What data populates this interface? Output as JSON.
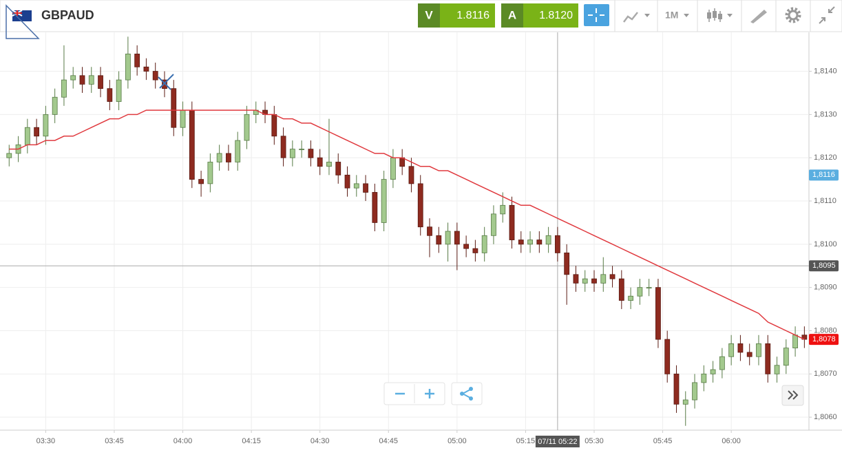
{
  "header": {
    "symbol": "GBPAUD",
    "bid_label": "V",
    "bid": "1.8116",
    "ask_label": "A",
    "ask": "1.8120",
    "timeframe": "1M"
  },
  "chart_data": {
    "type": "candlestick",
    "categories": [
      "03:22",
      "03:24",
      "03:26",
      "03:28",
      "03:30",
      "03:32",
      "03:34",
      "03:36",
      "03:38",
      "03:40",
      "03:42",
      "03:44",
      "03:46",
      "03:48",
      "03:50",
      "03:52",
      "03:54",
      "03:56",
      "03:58",
      "04:00",
      "04:02",
      "04:04",
      "04:06",
      "04:08",
      "04:10",
      "04:12",
      "04:14",
      "04:16",
      "04:18",
      "04:20",
      "04:22",
      "04:24",
      "04:26",
      "04:28",
      "04:30",
      "04:32",
      "04:34",
      "04:36",
      "04:38",
      "04:40",
      "04:42",
      "04:44",
      "04:46",
      "04:48",
      "04:50",
      "04:52",
      "04:54",
      "04:56",
      "04:58",
      "05:00",
      "05:02",
      "05:04",
      "05:06",
      "05:08",
      "05:10",
      "05:12",
      "05:14",
      "05:16",
      "05:18",
      "05:20",
      "05:22",
      "05:24",
      "05:26",
      "05:28",
      "05:30",
      "05:32",
      "05:34",
      "05:36",
      "05:38",
      "05:40",
      "05:42",
      "05:44",
      "05:46",
      "05:48",
      "05:50",
      "05:52",
      "05:54",
      "05:56",
      "05:58",
      "06:00",
      "06:02",
      "06:04",
      "06:06",
      "06:08",
      "06:10",
      "06:12",
      "06:14",
      "06:16"
    ],
    "open": [
      1.812,
      1.8121,
      1.8123,
      1.8127,
      1.8125,
      1.813,
      1.8134,
      1.8138,
      1.8139,
      1.8137,
      1.8139,
      1.8136,
      1.8133,
      1.8138,
      1.8144,
      1.8141,
      1.814,
      1.8138,
      1.8136,
      1.8127,
      1.8131,
      1.8115,
      1.8114,
      1.8119,
      1.8121,
      1.8119,
      1.8124,
      1.813,
      1.8131,
      1.813,
      1.8125,
      1.812,
      1.8122,
      1.8122,
      1.812,
      1.8118,
      1.8119,
      1.8116,
      1.8113,
      1.8114,
      1.8112,
      1.8105,
      1.8115,
      1.812,
      1.8118,
      1.8114,
      1.8104,
      1.8102,
      1.81,
      1.8103,
      1.81,
      1.8099,
      1.8098,
      1.8102,
      1.8107,
      1.8109,
      1.8101,
      1.81,
      1.8101,
      1.81,
      1.8102,
      1.8098,
      1.8093,
      1.8091,
      1.8092,
      1.8091,
      1.8093,
      1.8092,
      1.8087,
      1.8088,
      1.809,
      1.809,
      1.8078,
      1.807,
      1.8063,
      1.8064,
      1.8068,
      1.807,
      1.8071,
      1.8074,
      1.8077,
      1.8075,
      1.8074,
      1.8077,
      1.807,
      1.8072,
      1.8076,
      1.8079
    ],
    "high": [
      1.8123,
      1.8125,
      1.8129,
      1.8129,
      1.8132,
      1.8136,
      1.8146,
      1.8141,
      1.8141,
      1.8141,
      1.8141,
      1.8138,
      1.814,
      1.8148,
      1.8146,
      1.8143,
      1.8142,
      1.814,
      1.8138,
      1.8133,
      1.8133,
      1.8117,
      1.8121,
      1.8123,
      1.8123,
      1.8126,
      1.8132,
      1.8133,
      1.8133,
      1.8132,
      1.8127,
      1.8124,
      1.8124,
      1.8124,
      1.8122,
      1.8129,
      1.8121,
      1.8118,
      1.8116,
      1.8116,
      1.8114,
      1.8117,
      1.8122,
      1.8122,
      1.812,
      1.8116,
      1.8106,
      1.8104,
      1.8105,
      1.8105,
      1.8102,
      1.8101,
      1.8104,
      1.8109,
      1.8112,
      1.8111,
      1.8103,
      1.8103,
      1.8103,
      1.8104,
      1.8104,
      1.81,
      1.8095,
      1.8094,
      1.8094,
      1.8097,
      1.8095,
      1.8094,
      1.809,
      1.8092,
      1.8092,
      1.8092,
      1.808,
      1.8072,
      1.8066,
      1.807,
      1.8072,
      1.8073,
      1.8076,
      1.8079,
      1.8079,
      1.8077,
      1.8079,
      1.8079,
      1.8074,
      1.8078,
      1.8081,
      1.8081
    ],
    "low": [
      1.8118,
      1.8119,
      1.8121,
      1.8123,
      1.8123,
      1.8128,
      1.8132,
      1.8136,
      1.8135,
      1.8135,
      1.8134,
      1.8131,
      1.8131,
      1.8136,
      1.8139,
      1.8138,
      1.8136,
      1.8134,
      1.8125,
      1.8125,
      1.8113,
      1.8111,
      1.8112,
      1.8117,
      1.8117,
      1.8117,
      1.8122,
      1.8128,
      1.8128,
      1.8123,
      1.8118,
      1.8118,
      1.812,
      1.8118,
      1.8116,
      1.8116,
      1.8114,
      1.8111,
      1.8111,
      1.811,
      1.8103,
      1.8103,
      1.8113,
      1.8116,
      1.8112,
      1.8102,
      1.8097,
      1.8098,
      1.8096,
      1.8094,
      1.8097,
      1.8096,
      1.8096,
      1.81,
      1.8105,
      1.8099,
      1.8098,
      1.8098,
      1.8098,
      1.8098,
      1.8096,
      1.8086,
      1.8089,
      1.8089,
      1.8089,
      1.8089,
      1.809,
      1.8085,
      1.8085,
      1.8086,
      1.8088,
      1.8076,
      1.8068,
      1.8061,
      1.8058,
      1.8062,
      1.8066,
      1.8068,
      1.8069,
      1.8072,
      1.8073,
      1.8072,
      1.8072,
      1.8068,
      1.8068,
      1.807,
      1.8074,
      1.8076
    ],
    "close": [
      1.8121,
      1.8123,
      1.8127,
      1.8125,
      1.813,
      1.8134,
      1.8138,
      1.8139,
      1.8137,
      1.8139,
      1.8136,
      1.8133,
      1.8138,
      1.8144,
      1.8141,
      1.814,
      1.8138,
      1.8136,
      1.8127,
      1.8131,
      1.8115,
      1.8114,
      1.8119,
      1.8121,
      1.8119,
      1.8124,
      1.813,
      1.8131,
      1.813,
      1.8125,
      1.812,
      1.8122,
      1.8122,
      1.812,
      1.8118,
      1.8119,
      1.8116,
      1.8113,
      1.8114,
      1.8112,
      1.8105,
      1.8115,
      1.812,
      1.8118,
      1.8114,
      1.8104,
      1.8102,
      1.81,
      1.8103,
      1.81,
      1.8099,
      1.8098,
      1.8102,
      1.8107,
      1.8109,
      1.8101,
      1.81,
      1.8101,
      1.81,
      1.8102,
      1.8098,
      1.8093,
      1.8091,
      1.8092,
      1.8091,
      1.8093,
      1.8092,
      1.8087,
      1.8088,
      1.809,
      1.809,
      1.8078,
      1.807,
      1.8063,
      1.8064,
      1.8068,
      1.807,
      1.8071,
      1.8074,
      1.8077,
      1.8075,
      1.8074,
      1.8077,
      1.807,
      1.8072,
      1.8076,
      1.8079,
      1.8078
    ],
    "up_color": "#a3c98e",
    "down_color": "#8e2b20",
    "moving_average": {
      "color": "#e0393e",
      "values": [
        1.8122,
        1.8122,
        1.8123,
        1.8123,
        1.8124,
        1.8124,
        1.8125,
        1.8125,
        1.8126,
        1.8127,
        1.8128,
        1.8129,
        1.8129,
        1.813,
        1.813,
        1.8131,
        1.8131,
        1.8131,
        1.8131,
        1.8131,
        1.8131,
        1.8131,
        1.8131,
        1.8131,
        1.8131,
        1.8131,
        1.8131,
        1.8131,
        1.813,
        1.813,
        1.8129,
        1.8129,
        1.8128,
        1.8128,
        1.8127,
        1.8126,
        1.8125,
        1.8124,
        1.8123,
        1.8122,
        1.8121,
        1.8121,
        1.812,
        1.812,
        1.8119,
        1.8118,
        1.8118,
        1.8117,
        1.8117,
        1.8116,
        1.8115,
        1.8114,
        1.8113,
        1.8112,
        1.8111,
        1.811,
        1.8109,
        1.8109,
        1.8108,
        1.8107,
        1.8106,
        1.8105,
        1.8104,
        1.8103,
        1.8102,
        1.8101,
        1.81,
        1.8099,
        1.8098,
        1.8097,
        1.8096,
        1.8095,
        1.8094,
        1.8093,
        1.8092,
        1.8091,
        1.809,
        1.8089,
        1.8088,
        1.8087,
        1.8086,
        1.8085,
        1.8084,
        1.8082,
        1.8081,
        1.808,
        1.8079,
        1.8078
      ]
    },
    "xlim": [
      "03:20",
      "06:17"
    ],
    "xticks": [
      "03:30",
      "03:45",
      "04:00",
      "04:15",
      "04:30",
      "04:45",
      "05:00",
      "05:15",
      "05:30",
      "05:45",
      "06:00"
    ],
    "ylim": [
      1.8057,
      1.8149
    ],
    "yticks": [
      {
        "value": 1.806,
        "label": "1,8060"
      },
      {
        "value": 1.807,
        "label": "1,8070"
      },
      {
        "value": 1.808,
        "label": "1,8080"
      },
      {
        "value": 1.809,
        "label": "1,8090"
      },
      {
        "value": 1.81,
        "label": "1,8100"
      },
      {
        "value": 1.811,
        "label": "1,8110"
      },
      {
        "value": 1.812,
        "label": "1,8120"
      },
      {
        "value": 1.813,
        "label": "1,8130"
      },
      {
        "value": 1.814,
        "label": "1,8140"
      }
    ],
    "grid": true,
    "price_labels": [
      {
        "value": 1.8116,
        "label": "1,8116",
        "color": "#5aaee0"
      },
      {
        "value": 1.8095,
        "label": "1,8095",
        "color": "#555555"
      },
      {
        "value": 1.8078,
        "label": "1,8078",
        "color": "#ee1111"
      }
    ],
    "crosshair": {
      "x": "05:22",
      "label": "07/11 05:22"
    }
  }
}
